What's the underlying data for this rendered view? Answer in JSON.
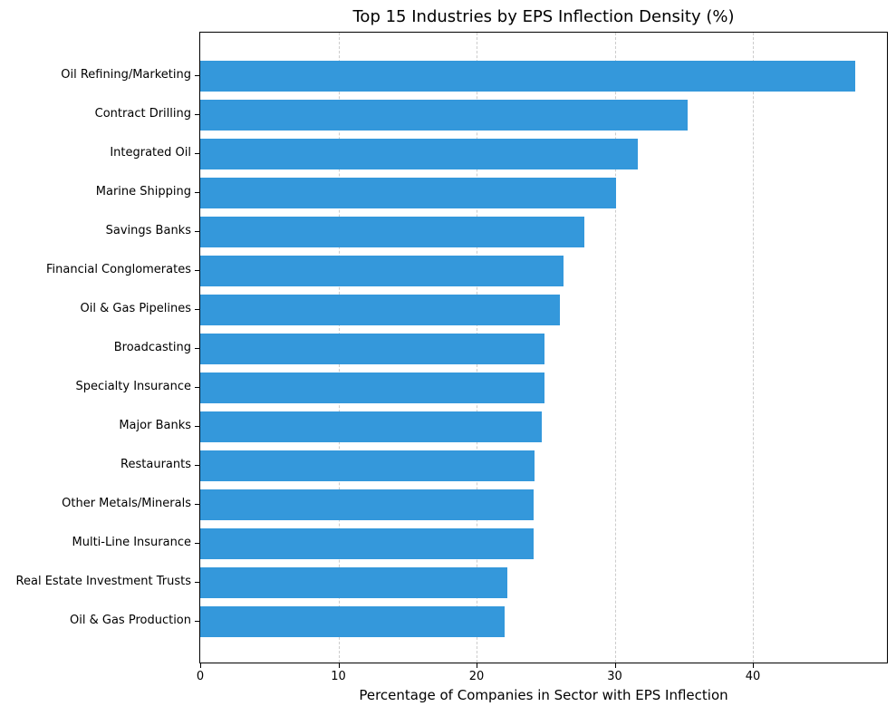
{
  "chart_data": {
    "type": "bar",
    "orientation": "horizontal",
    "title": "Top 15 Industries by EPS Inflection Density (%)",
    "xlabel": "Percentage of Companies in Sector with EPS Inflection",
    "categories": [
      "Oil Refining/Marketing",
      "Contract Drilling",
      "Integrated Oil",
      "Marine Shipping",
      "Savings Banks",
      "Financial Conglomerates",
      "Oil & Gas Pipelines",
      "Broadcasting",
      "Specialty Insurance",
      "Major Banks",
      "Restaurants",
      "Other Metals/Minerals",
      "Multi-Line Insurance",
      "Real Estate Investment Trusts",
      "Oil & Gas Production"
    ],
    "values": [
      47.4,
      35.3,
      31.7,
      30.1,
      27.8,
      26.3,
      26.0,
      24.9,
      24.9,
      24.7,
      24.2,
      24.1,
      24.1,
      22.2,
      22.0
    ],
    "xticks": [
      0,
      10,
      20,
      30,
      40
    ],
    "xlim": [
      0,
      49.7
    ],
    "grid": "vertical-dashed",
    "legend": "none",
    "bar_color": "#3498db",
    "grid_color": "#cccccc",
    "spine_color": "#000000",
    "text_color": "#000000",
    "background_color": "#ffffff"
  }
}
